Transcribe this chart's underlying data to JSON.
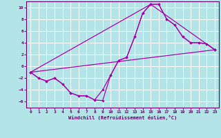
{
  "xlabel": "Windchill (Refroidissement éolien,°C)",
  "bg_color": "#b3e5e8",
  "line_color": "#aa00aa",
  "grid_color": "#ffffff",
  "xlim": [
    -0.5,
    23.5
  ],
  "ylim": [
    -7,
    11
  ],
  "xticks": [
    0,
    1,
    2,
    3,
    4,
    5,
    6,
    7,
    8,
    9,
    10,
    11,
    12,
    13,
    14,
    15,
    16,
    17,
    18,
    19,
    20,
    21,
    22,
    23
  ],
  "yticks": [
    -6,
    -4,
    -2,
    0,
    2,
    4,
    6,
    8,
    10
  ],
  "curve1_x": [
    0,
    1,
    2,
    3,
    4,
    5,
    6,
    7,
    8,
    9,
    10,
    11,
    12,
    13,
    14,
    15,
    16,
    17,
    18,
    19,
    20,
    21,
    22,
    23
  ],
  "curve1_y": [
    -1,
    -2,
    -2.5,
    -2,
    -3,
    -4.5,
    -5,
    -5,
    -5.7,
    -5.8,
    -1.5,
    1,
    1.5,
    5,
    9,
    10.5,
    10.5,
    8,
    7,
    5,
    4,
    4,
    3.8,
    2.8
  ],
  "curve2_x": [
    0,
    1,
    2,
    3,
    4,
    5,
    6,
    7,
    8,
    9,
    10,
    11,
    12,
    13,
    14,
    15,
    16,
    17,
    18,
    19,
    20,
    21,
    22,
    23
  ],
  "curve2_y": [
    -1,
    -2,
    -2.5,
    -2,
    -3,
    -4.5,
    -5,
    -5,
    -5.7,
    -4,
    -1.5,
    1,
    1.5,
    5,
    9,
    10.5,
    10.5,
    8,
    7,
    5,
    4,
    4,
    3.8,
    2.8
  ],
  "line3_x": [
    0,
    23
  ],
  "line3_y": [
    -1,
    2.8
  ],
  "line4_x": [
    0,
    15,
    23
  ],
  "line4_y": [
    -1,
    10.5,
    2.8
  ],
  "figsize": [
    3.2,
    2.0
  ],
  "dpi": 100
}
